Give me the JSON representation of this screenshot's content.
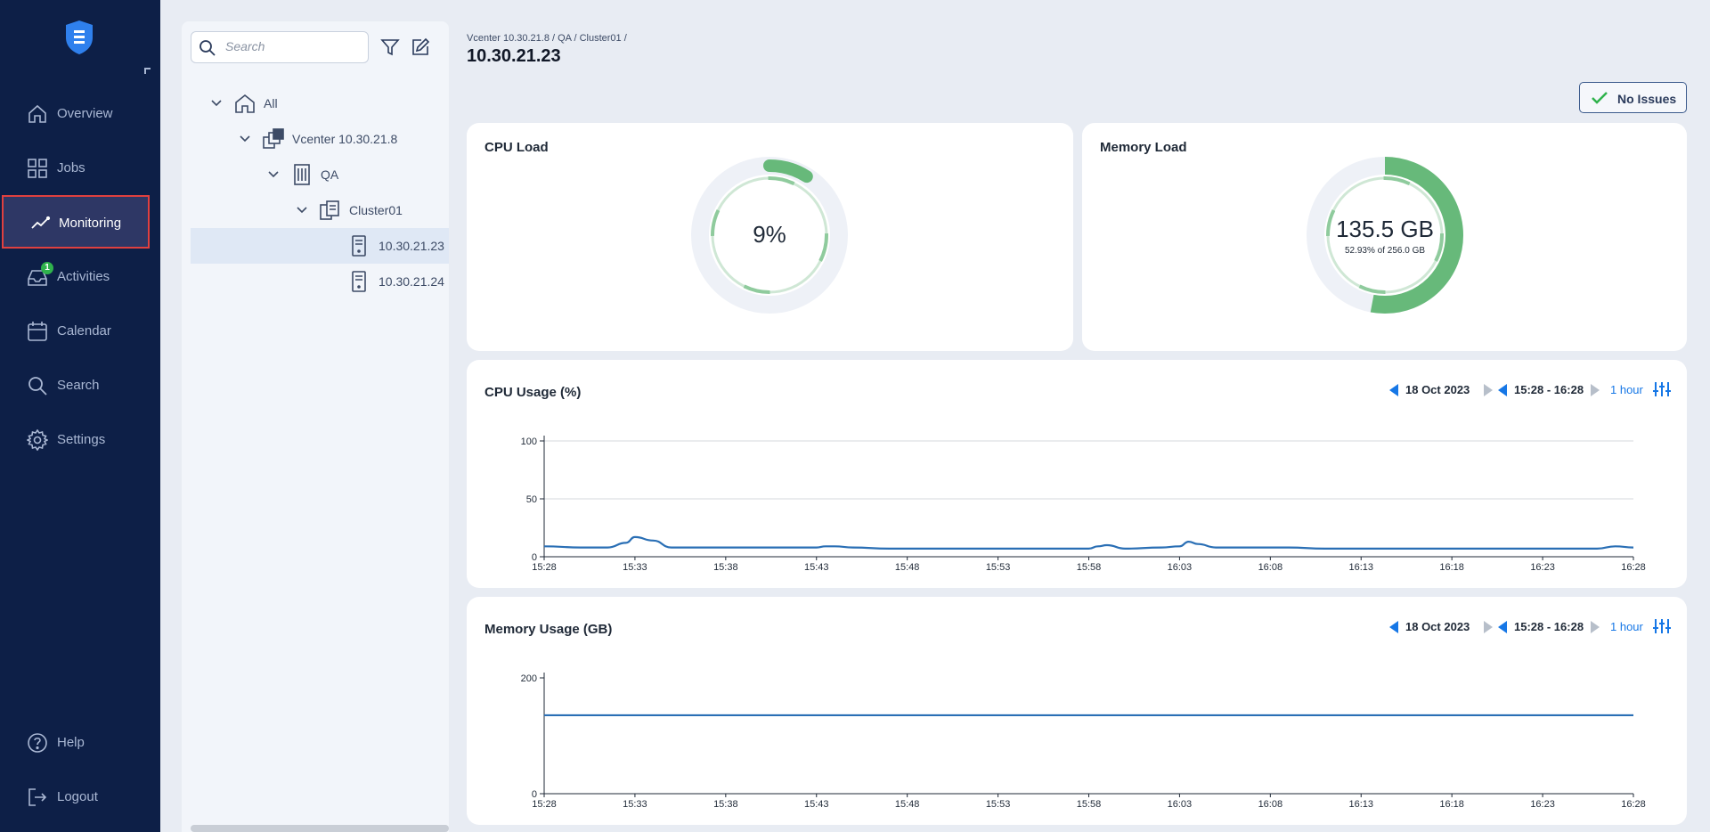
{
  "sidebar": {
    "logo": "app-logo-icon",
    "items": [
      {
        "key": "overview",
        "label": "Overview",
        "icon": "home-icon"
      },
      {
        "key": "jobs",
        "label": "Jobs",
        "icon": "grid-icon"
      },
      {
        "key": "monitoring",
        "label": "Monitoring",
        "icon": "activity-line-icon",
        "active": true
      },
      {
        "key": "activities",
        "label": "Activities",
        "icon": "inbox-icon",
        "badge": "1"
      },
      {
        "key": "calendar",
        "label": "Calendar",
        "icon": "calendar-icon"
      },
      {
        "key": "search",
        "label": "Search",
        "icon": "search-icon"
      },
      {
        "key": "settings",
        "label": "Settings",
        "icon": "gear-icon"
      }
    ],
    "help_label": "Help",
    "logout_label": "Logout"
  },
  "tree": {
    "search_placeholder": "Search",
    "filter_icon": "filter-icon",
    "edit_icon": "edit-icon",
    "nodes": [
      {
        "label": "All",
        "icon": "home-icon"
      },
      {
        "label": "Vcenter 10.30.21.8",
        "icon": "vcenter-icon"
      },
      {
        "label": "QA",
        "icon": "building-icon"
      },
      {
        "label": "Cluster01",
        "icon": "cluster-icon"
      },
      {
        "label": "10.30.21.23",
        "icon": "server-icon",
        "selected": true
      },
      {
        "label": "10.30.21.24",
        "icon": "server-icon"
      }
    ]
  },
  "header": {
    "breadcrumb": "Vcenter 10.30.21.8 / QA / Cluster01 /",
    "title": "10.30.21.23",
    "status_label": "No Issues"
  },
  "colors": {
    "accent": "#1677e6",
    "gauge_fill": "#67b97a",
    "gauge_track": "#eef1f7",
    "line": "#2a6fb5",
    "sidebar": "#0d1f47",
    "highlight": "#e0403f"
  },
  "cpu_load": {
    "title": "CPU Load",
    "value_label": "9%",
    "fraction": 0.09
  },
  "memory_load": {
    "title": "Memory Load",
    "value_label": "135.5 GB",
    "sub_label": "52.93% of 256.0 GB",
    "fraction": 0.5293
  },
  "cpu_usage": {
    "title": "CPU Usage (%)",
    "date": "18 Oct 2023",
    "range": "15:28 - 16:28",
    "interval": "1 hour"
  },
  "memory_usage": {
    "title": "Memory Usage (GB)",
    "date": "18 Oct 2023",
    "range": "15:28 - 16:28",
    "interval": "1 hour"
  },
  "chart_data": [
    {
      "type": "line",
      "title": "CPU Usage (%)",
      "xlabel": "",
      "ylabel": "",
      "x_ticks": [
        "15:28",
        "15:33",
        "15:38",
        "15:43",
        "15:48",
        "15:53",
        "15:58",
        "16:03",
        "16:08",
        "16:13",
        "16:18",
        "16:23",
        "16:28"
      ],
      "y_ticks": [
        0,
        50,
        100
      ],
      "ylim": [
        0,
        100
      ],
      "xlim": [
        0,
        60
      ],
      "grid": "horizontal",
      "series": [
        {
          "x": [
            0,
            2,
            3.5,
            4.5,
            5,
            6,
            7,
            9,
            11,
            13,
            15,
            15.5,
            16,
            17,
            19,
            21,
            23,
            25,
            27,
            29,
            30,
            30.5,
            31,
            32,
            34,
            35,
            35.5,
            36,
            37,
            39,
            41,
            43,
            45,
            47,
            49,
            51,
            53,
            55,
            57,
            58,
            59,
            60
          ],
          "y": [
            9,
            8,
            8,
            12,
            17,
            14,
            8,
            8,
            8,
            8,
            8,
            9,
            9,
            8,
            7,
            7,
            7,
            7,
            7,
            7,
            7,
            9,
            10,
            7,
            8,
            9,
            13,
            11,
            8,
            8,
            8,
            7,
            7,
            7,
            7,
            7,
            7,
            7,
            7,
            7,
            9,
            8
          ]
        }
      ]
    },
    {
      "type": "line",
      "title": "Memory Usage (GB)",
      "xlabel": "",
      "ylabel": "",
      "x_ticks": [
        "15:28",
        "15:33",
        "15:38",
        "15:43",
        "15:48",
        "15:53",
        "15:58",
        "16:03",
        "16:08",
        "16:13",
        "16:18",
        "16:23",
        "16:28"
      ],
      "y_ticks": [
        0,
        200
      ],
      "ylim": [
        0,
        200
      ],
      "xlim": [
        0,
        60
      ],
      "grid": "none",
      "series": [
        {
          "x": [
            0,
            60
          ],
          "y": [
            135.5,
            135.5
          ]
        }
      ]
    }
  ]
}
